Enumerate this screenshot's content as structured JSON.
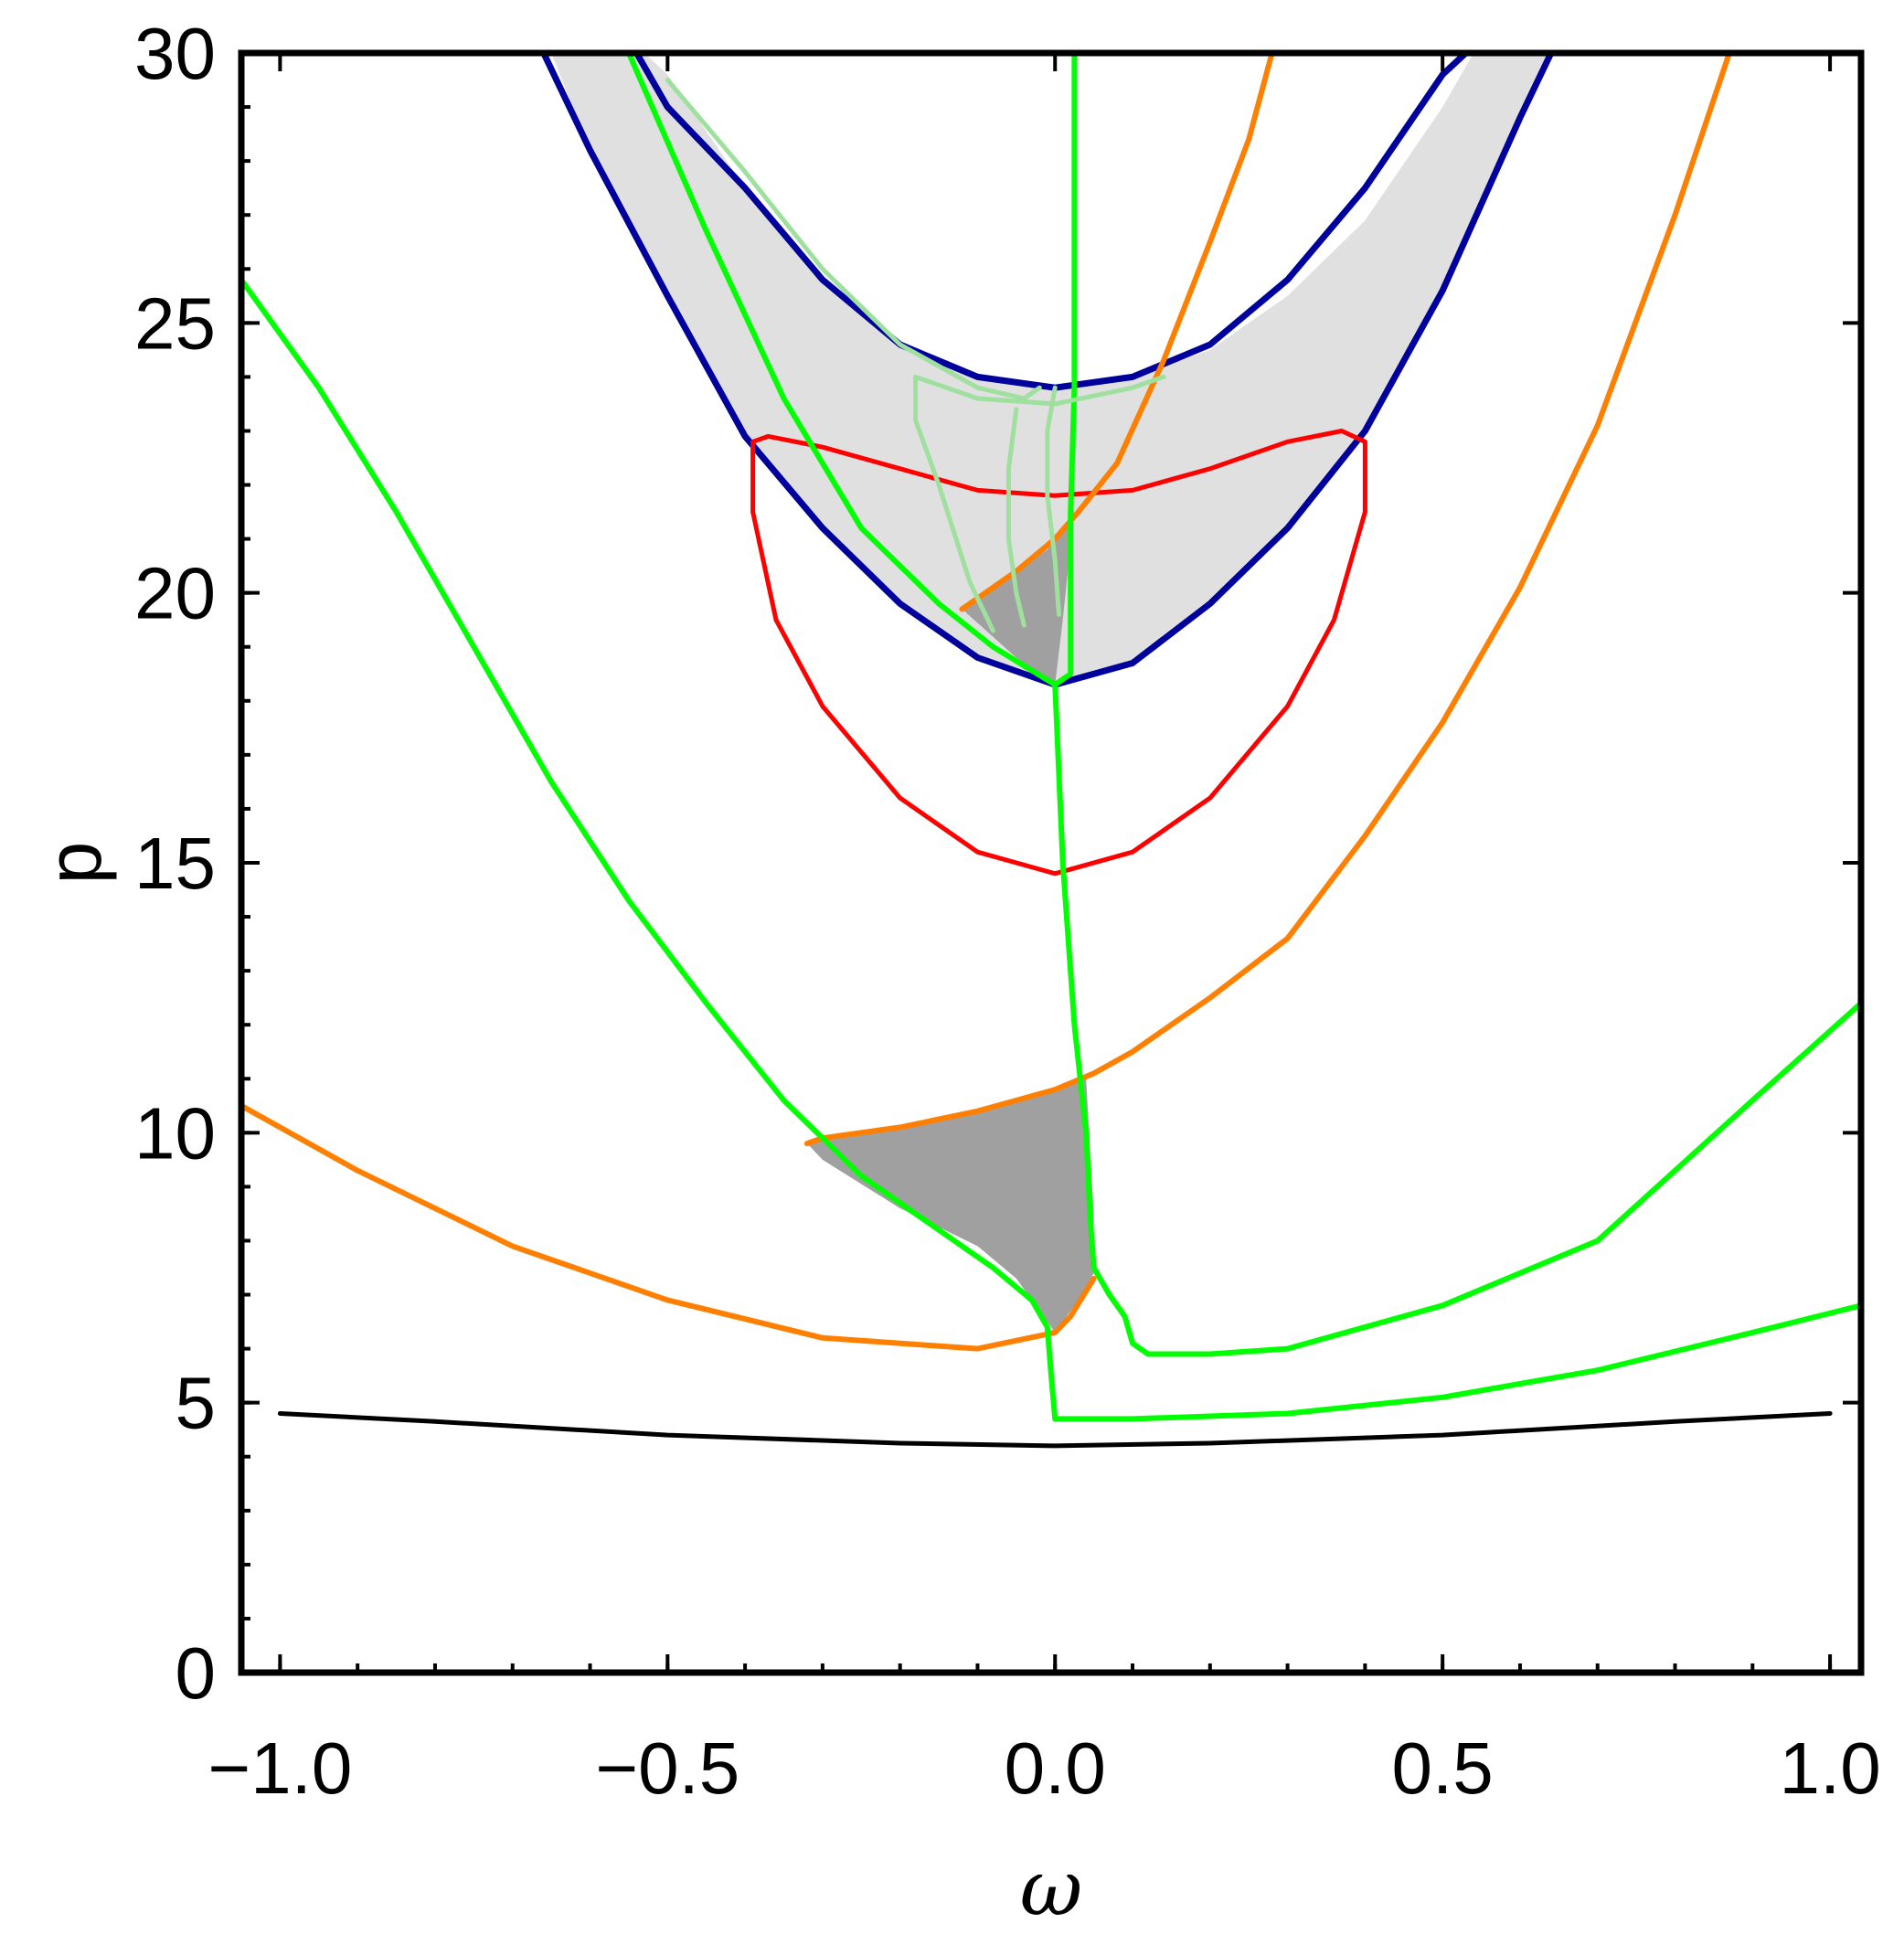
{
  "chart_data": {
    "type": "line",
    "title": "",
    "xlabel": "ω",
    "ylabel": "p",
    "xlim": [
      -1.05,
      1.04
    ],
    "ylim": [
      0,
      30
    ],
    "xticks": [
      {
        "v": -1.0,
        "label": "−1.0"
      },
      {
        "v": -0.5,
        "label": "−0.5"
      },
      {
        "v": 0.0,
        "label": "0.0"
      },
      {
        "v": 0.5,
        "label": "0.5"
      },
      {
        "v": 1.0,
        "label": "1.0"
      }
    ],
    "yticks": [
      {
        "v": 0,
        "label": "0"
      },
      {
        "v": 5,
        "label": "5"
      },
      {
        "v": 10,
        "label": "10"
      },
      {
        "v": 15,
        "label": "15"
      },
      {
        "v": 20,
        "label": "20"
      },
      {
        "v": 25,
        "label": "25"
      },
      {
        "v": 30,
        "label": "30"
      }
    ],
    "xminor": [
      -1.0,
      -0.9,
      -0.8,
      -0.7,
      -0.6,
      -0.5,
      -0.4,
      -0.3,
      -0.2,
      -0.1,
      0.0,
      0.1,
      0.2,
      0.3,
      0.4,
      0.5,
      0.6,
      0.7,
      0.8,
      0.9,
      1.0
    ],
    "yminor": [
      1,
      2,
      3,
      4,
      5,
      6,
      7,
      8,
      9,
      10,
      11,
      12,
      13,
      14,
      15,
      16,
      17,
      18,
      19,
      20,
      21,
      22,
      23,
      24,
      25,
      26,
      27,
      28,
      29,
      30
    ],
    "grid": false,
    "regions": [
      {
        "color": "#e0e0e0",
        "points": [
          [
            -0.65,
            30
          ],
          [
            -0.6,
            28.2
          ],
          [
            -0.5,
            25.5
          ],
          [
            -0.4,
            22.9
          ],
          [
            -0.3,
            21.2
          ],
          [
            -0.2,
            19.8
          ],
          [
            -0.1,
            18.8
          ],
          [
            0,
            18.3
          ],
          [
            0.1,
            18.7
          ],
          [
            0.2,
            19.8
          ],
          [
            0.3,
            21.2
          ],
          [
            0.4,
            23.0
          ],
          [
            0.5,
            25.6
          ],
          [
            0.6,
            28.8
          ],
          [
            0.64,
            30
          ],
          [
            0.54,
            30
          ],
          [
            0.5,
            29.0
          ],
          [
            0.4,
            26.9
          ],
          [
            0.3,
            25.5
          ],
          [
            0.2,
            24.5
          ],
          [
            0.1,
            24.0
          ],
          [
            0,
            23.8
          ],
          [
            -0.1,
            24.0
          ],
          [
            -0.2,
            24.6
          ],
          [
            -0.3,
            25.8
          ],
          [
            -0.4,
            27.5
          ],
          [
            -0.5,
            29.6
          ],
          [
            -0.53,
            30
          ]
        ]
      },
      {
        "color": "#a0a0a0",
        "points": [
          [
            -0.12,
            19.7
          ],
          [
            -0.09,
            20.0
          ],
          [
            -0.05,
            20.4
          ],
          [
            -0.01,
            20.8
          ],
          [
            0.02,
            21.3
          ],
          [
            0.025,
            21.6
          ],
          [
            0.01,
            19.5
          ],
          [
            0.0,
            18.3
          ],
          [
            -0.05,
            18.8
          ],
          [
            -0.12,
            19.7
          ]
        ]
      },
      {
        "color": "#a0a0a0",
        "points": [
          [
            -0.32,
            9.8
          ],
          [
            -0.3,
            9.9
          ],
          [
            -0.2,
            10.1
          ],
          [
            -0.1,
            10.4
          ],
          [
            0.0,
            10.8
          ],
          [
            0.04,
            11.0
          ],
          [
            0.05,
            8.5
          ],
          [
            0.05,
            7.4
          ],
          [
            0.03,
            6.9
          ],
          [
            0.0,
            6.3
          ],
          [
            -0.05,
            7.3
          ],
          [
            -0.1,
            7.9
          ],
          [
            -0.2,
            8.6
          ],
          [
            -0.3,
            9.5
          ],
          [
            -0.32,
            9.8
          ]
        ]
      }
    ],
    "series": [
      {
        "color": "#00009c",
        "width": 7,
        "points": [
          [
            -0.66,
            30
          ],
          [
            -0.6,
            28.2
          ],
          [
            -0.5,
            25.5
          ],
          [
            -0.4,
            22.9
          ],
          [
            -0.3,
            21.2
          ],
          [
            -0.2,
            19.8
          ],
          [
            -0.1,
            18.8
          ],
          [
            0,
            18.3
          ],
          [
            0.1,
            18.7
          ],
          [
            0.2,
            19.8
          ],
          [
            0.3,
            21.2
          ],
          [
            0.4,
            23.0
          ],
          [
            0.5,
            25.6
          ],
          [
            0.6,
            28.8
          ],
          [
            0.64,
            30
          ]
        ]
      },
      {
        "color": "#00009c",
        "width": 7,
        "points": [
          [
            -0.54,
            30
          ],
          [
            -0.5,
            29.0
          ],
          [
            -0.4,
            27.5
          ],
          [
            -0.3,
            25.8
          ],
          [
            -0.2,
            24.6
          ],
          [
            -0.1,
            24.0
          ],
          [
            0,
            23.8
          ],
          [
            0.1,
            24.0
          ],
          [
            0.2,
            24.6
          ],
          [
            0.3,
            25.8
          ],
          [
            0.4,
            27.5
          ],
          [
            0.5,
            29.6
          ],
          [
            0.53,
            30
          ]
        ]
      },
      {
        "color": "#ff0000",
        "width": 5,
        "points": [
          [
            -0.39,
            22.8
          ],
          [
            -0.39,
            21.5
          ],
          [
            -0.36,
            19.5
          ],
          [
            -0.3,
            17.9
          ],
          [
            -0.2,
            16.2
          ],
          [
            -0.1,
            15.2
          ],
          [
            0,
            14.8
          ],
          [
            0.1,
            15.2
          ],
          [
            0.2,
            16.2
          ],
          [
            0.3,
            17.9
          ],
          [
            0.36,
            19.5
          ],
          [
            0.4,
            21.5
          ],
          [
            0.4,
            22.8
          ],
          [
            0.37,
            23.0
          ],
          [
            0.3,
            22.8
          ],
          [
            0.2,
            22.3
          ],
          [
            0.1,
            21.9
          ],
          [
            0,
            21.8
          ],
          [
            -0.1,
            21.9
          ],
          [
            -0.2,
            22.3
          ],
          [
            -0.3,
            22.7
          ],
          [
            -0.37,
            22.9
          ],
          [
            -0.39,
            22.8
          ]
        ]
      },
      {
        "color": "#ff8000",
        "width": 6,
        "points": [
          [
            -1.05,
            10.5
          ],
          [
            -0.9,
            9.3
          ],
          [
            -0.7,
            7.9
          ],
          [
            -0.5,
            6.9
          ],
          [
            -0.3,
            6.2
          ],
          [
            -0.1,
            6.0
          ],
          [
            0,
            6.3
          ],
          [
            0.02,
            6.6
          ],
          [
            0.05,
            7.3
          ]
        ]
      },
      {
        "color": "#ff8000",
        "width": 6,
        "points": [
          [
            -0.32,
            9.8
          ],
          [
            -0.3,
            9.9
          ],
          [
            -0.2,
            10.1
          ],
          [
            -0.1,
            10.4
          ],
          [
            0,
            10.8
          ],
          [
            0.05,
            11.1
          ],
          [
            0.1,
            11.5
          ],
          [
            0.2,
            12.5
          ],
          [
            0.3,
            13.6
          ],
          [
            0.4,
            15.5
          ],
          [
            0.5,
            17.6
          ],
          [
            0.6,
            20.1
          ],
          [
            0.7,
            23.1
          ],
          [
            0.8,
            27.0
          ],
          [
            0.87,
            30
          ]
        ]
      },
      {
        "color": "#ff8000",
        "width": 6,
        "points": [
          [
            -0.12,
            19.7
          ],
          [
            -0.1,
            19.9
          ],
          [
            -0.05,
            20.4
          ],
          [
            0,
            21.0
          ],
          [
            0.03,
            21.5
          ],
          [
            0.08,
            22.4
          ],
          [
            0.14,
            24.3
          ],
          [
            0.2,
            26.5
          ],
          [
            0.25,
            28.4
          ],
          [
            0.28,
            30
          ]
        ]
      },
      {
        "color": "#00ff00",
        "width": 6,
        "points": [
          [
            -1.05,
            25.8
          ],
          [
            -0.95,
            23.8
          ],
          [
            -0.85,
            21.5
          ],
          [
            -0.75,
            19.0
          ],
          [
            -0.65,
            16.5
          ],
          [
            -0.55,
            14.3
          ],
          [
            -0.45,
            12.4
          ],
          [
            -0.35,
            10.6
          ],
          [
            -0.25,
            9.2
          ],
          [
            -0.15,
            8.2
          ],
          [
            -0.08,
            7.5
          ],
          [
            -0.03,
            6.9
          ],
          [
            -0.01,
            6.4
          ],
          [
            -0.005,
            5.5
          ],
          [
            0,
            4.7
          ],
          [
            0.1,
            4.7
          ],
          [
            0.3,
            4.8
          ],
          [
            0.5,
            5.1
          ],
          [
            0.7,
            5.6
          ],
          [
            0.9,
            6.3
          ],
          [
            1.04,
            6.8
          ]
        ]
      },
      {
        "color": "#00ff00",
        "width": 6,
        "points": [
          [
            -0.55,
            30
          ],
          [
            -0.45,
            26.7
          ],
          [
            -0.35,
            23.6
          ],
          [
            -0.25,
            21.2
          ],
          [
            -0.15,
            19.8
          ],
          [
            -0.08,
            19.0
          ],
          [
            0,
            18.3
          ],
          [
            0.02,
            18.5
          ],
          [
            0.02,
            21.5
          ],
          [
            0.025,
            23.8
          ],
          [
            0.025,
            26.0
          ],
          [
            0.025,
            28.0
          ],
          [
            0.025,
            30
          ]
        ]
      },
      {
        "color": "#00ff00",
        "width": 6,
        "points": [
          [
            0,
            18.3
          ],
          [
            0.01,
            15.0
          ],
          [
            0.025,
            12.0
          ],
          [
            0.04,
            10.0
          ],
          [
            0.045,
            8.5
          ],
          [
            0.05,
            7.5
          ],
          [
            0.07,
            7.0
          ],
          [
            0.09,
            6.6
          ],
          [
            0.1,
            6.1
          ],
          [
            0.12,
            5.9
          ],
          [
            0.2,
            5.9
          ],
          [
            0.3,
            6.0
          ],
          [
            0.5,
            6.8
          ],
          [
            0.7,
            8.0
          ],
          [
            0.9,
            10.6
          ],
          [
            1.04,
            12.4
          ]
        ]
      },
      {
        "color": "#000000",
        "width": 5,
        "points": [
          [
            -1.0,
            4.8
          ],
          [
            -0.8,
            4.65
          ],
          [
            -0.5,
            4.4
          ],
          [
            -0.2,
            4.25
          ],
          [
            0,
            4.2
          ],
          [
            0.2,
            4.25
          ],
          [
            0.5,
            4.4
          ],
          [
            0.8,
            4.65
          ],
          [
            1.0,
            4.8
          ]
        ]
      },
      {
        "color": "#9fe09f",
        "width": 5,
        "points": [
          [
            -0.5,
            29.5
          ],
          [
            -0.4,
            27.8
          ],
          [
            -0.3,
            26.0
          ],
          [
            -0.2,
            24.6
          ],
          [
            -0.1,
            23.8
          ],
          [
            -0.04,
            23.6
          ],
          [
            -0.02,
            23.8
          ]
        ]
      },
      {
        "color": "#9fe09f",
        "width": 5,
        "points": [
          [
            -0.18,
            24.0
          ],
          [
            -0.1,
            23.6
          ],
          [
            0,
            23.5
          ],
          [
            0.1,
            23.8
          ],
          [
            0.14,
            24.0
          ]
        ]
      },
      {
        "color": "#9fe09f",
        "width": 5,
        "points": [
          [
            -0.18,
            24.0
          ],
          [
            -0.18,
            23.2
          ],
          [
            -0.15,
            22.0
          ],
          [
            -0.11,
            20.2
          ],
          [
            -0.08,
            19.3
          ]
        ]
      },
      {
        "color": "#9fe09f",
        "width": 5,
        "points": [
          [
            -0.05,
            23.4
          ],
          [
            -0.06,
            22.3
          ],
          [
            -0.06,
            21.0
          ],
          [
            -0.05,
            20.0
          ],
          [
            -0.04,
            19.4
          ]
        ]
      },
      {
        "color": "#9fe09f",
        "width": 5,
        "points": [
          [
            0,
            23.8
          ],
          [
            -0.01,
            23.0
          ],
          [
            -0.01,
            21.8
          ],
          [
            0,
            20.6
          ],
          [
            0.005,
            19.6
          ]
        ]
      }
    ]
  }
}
